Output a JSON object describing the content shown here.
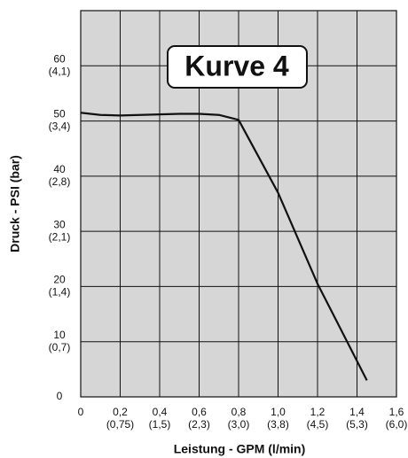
{
  "chart_data": {
    "type": "line",
    "annotation": "Kurve 4",
    "x_label": "Leistung - GPM (l/min)",
    "y_label": "Druck - PSI (bar)",
    "x": [
      0,
      0.1,
      0.2,
      0.3,
      0.4,
      0.5,
      0.6,
      0.7,
      0.8,
      1.0,
      1.2,
      1.45
    ],
    "series": [
      {
        "color": "#111111",
        "values": [
          51.5,
          51.1,
          51.0,
          51.1,
          51.2,
          51.3,
          51.3,
          51.1,
          50.2,
          37,
          20.5,
          3
        ]
      }
    ],
    "xlim": [
      0,
      1.6
    ],
    "ylim": [
      0,
      70
    ],
    "xticks": [
      0,
      {
        "value": 0.2,
        "label": "0,2"
      },
      {
        "value": 0.4,
        "label": "0,4"
      },
      {
        "value": 0.6,
        "label": "0,6"
      },
      {
        "value": 0.8,
        "label": "0,8"
      },
      {
        "value": 1.0,
        "label": "1,0"
      },
      {
        "value": 1.2,
        "label": "1,2"
      },
      {
        "value": 1.4,
        "label": "1,4"
      },
      {
        "value": 1.6,
        "label": "1,6"
      }
    ],
    "xticks_metric": [
      null,
      "(0,75)",
      "(1,5)",
      "(2,3)",
      "(3,0)",
      "(3,8)",
      "(4,5)",
      "(5,3)",
      "(6,0)"
    ],
    "yticks": [
      0,
      10,
      20,
      30,
      40,
      50,
      60
    ],
    "yticks_metric": [
      null,
      "(0,7)",
      "(1,4)",
      "(2,1)",
      "(2,8)",
      "(3,4)",
      "(4,1)"
    ],
    "grid": true,
    "background": "#d6d6d6"
  }
}
